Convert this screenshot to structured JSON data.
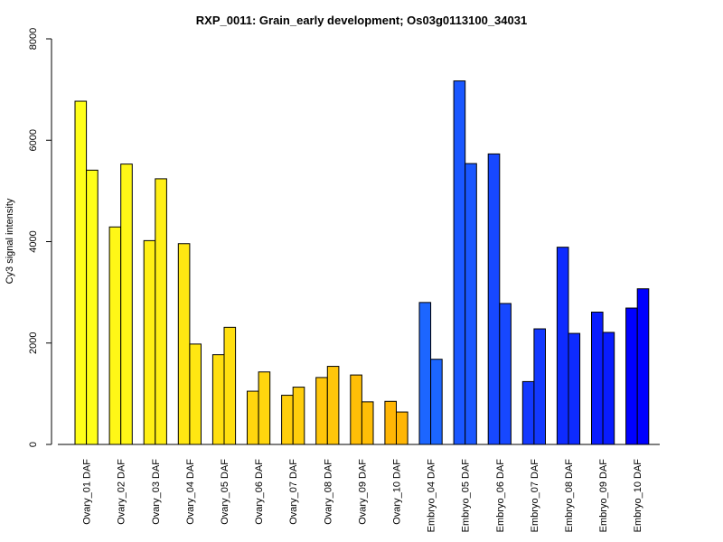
{
  "chart_data": {
    "type": "bar",
    "title": "RXP_0011: Grain_early development; Os03g0113100_34031",
    "xlabel": "",
    "ylabel": "Cy3 signal intensity",
    "ylim": [
      0,
      8000
    ],
    "yticks": [
      0,
      2000,
      4000,
      6000,
      8000
    ],
    "grid": false,
    "legend": "none",
    "categories": [
      "Ovary_01 DAF",
      "Ovary_02 DAF",
      "Ovary_03 DAF",
      "Ovary_04 DAF",
      "Ovary_05 DAF",
      "Ovary_06 DAF",
      "Ovary_07 DAF",
      "Ovary_08 DAF",
      "Ovary_09 DAF",
      "Ovary_10 DAF",
      "Embryo_04 DAF",
      "Embryo_05 DAF",
      "Embryo_06 DAF",
      "Embryo_07 DAF",
      "Embryo_08 DAF",
      "Embryo_09 DAF",
      "Embryo_10 DAF"
    ],
    "series": [
      {
        "values": [
          6770,
          4290,
          4020,
          3960,
          1770,
          1050,
          970,
          1320,
          1370,
          850,
          2800,
          7170,
          5730,
          1240,
          3890,
          2610,
          2690
        ]
      },
      {
        "values": [
          5410,
          5530,
          5240,
          1980,
          2310,
          1430,
          1130,
          1540,
          840,
          640,
          1680,
          5540,
          2780,
          2280,
          2190,
          2210,
          3070
        ]
      }
    ],
    "category_colors": [
      "#FFFF19",
      "#FFF717",
      "#FFEF15",
      "#FFE712",
      "#FFDF10",
      "#FFD60E",
      "#FFCE0C",
      "#FFC60A",
      "#FFBE07",
      "#FFB605",
      "#1C66FF",
      "#1A57FF",
      "#1748FF",
      "#1339FF",
      "#0E2BFF",
      "#091CFF",
      "#0000FF"
    ]
  }
}
